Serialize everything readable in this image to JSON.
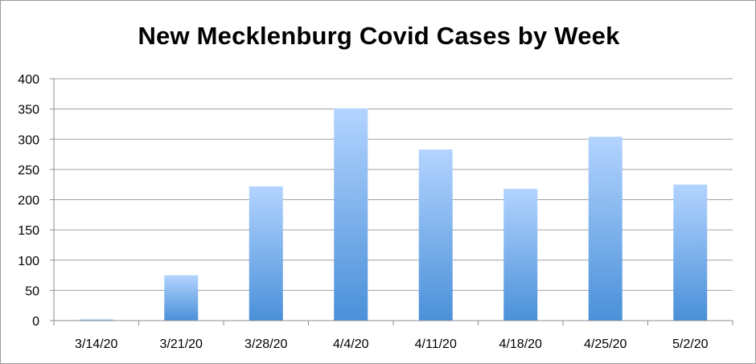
{
  "chart_data": {
    "type": "bar",
    "title": "New Mecklenburg Covid Cases by Week",
    "xlabel": "",
    "ylabel": "",
    "categories": [
      "3/14/20",
      "3/21/20",
      "3/28/20",
      "4/4/20",
      "4/11/20",
      "4/18/20",
      "4/25/20",
      "5/2/20"
    ],
    "values": [
      2,
      75,
      222,
      351,
      283,
      218,
      304,
      225
    ],
    "ylim": [
      0,
      400
    ],
    "yticks": [
      0,
      50,
      100,
      150,
      200,
      250,
      300,
      350,
      400
    ],
    "grid": true,
    "legend": "none",
    "colors": {
      "bar_top": "#b3d4ff",
      "bar_bottom": "#4a90d9",
      "grid": "#a0a0a0",
      "axis": "#8c8c8c"
    }
  }
}
